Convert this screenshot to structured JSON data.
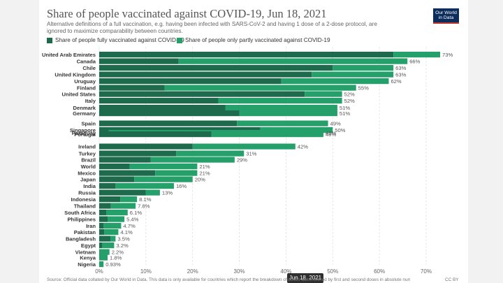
{
  "header": {
    "title": "Share of people vaccinated against COVID-19, Jun 18, 2021",
    "subtitle": "Alternative definitions of a full vaccination, e.g. having been infected with SARS-CoV-2 and having 1 dose of a 2-dose protocol, are ignored to maximize comparability between countries.",
    "logo_line1": "Our World",
    "logo_line2": "in Data"
  },
  "colors": {
    "fully": "#1e6a4c",
    "partly": "#25a06a",
    "grid": "#dddddd",
    "label": "#333333",
    "value": "#555555",
    "logo": "#0b2d5c",
    "logo_accent": "#c0372d"
  },
  "chart_data": {
    "type": "bar",
    "orientation": "horizontal",
    "stacked": true,
    "title": "Share of people vaccinated against COVID-19, Jun 18, 2021",
    "xlim": [
      0,
      73
    ],
    "x_ticks": [
      0,
      10,
      20,
      30,
      40,
      50,
      60,
      70
    ],
    "x_tick_labels": [
      "0%",
      "10%",
      "20%",
      "30%",
      "40%",
      "50%",
      "60%",
      "70%"
    ],
    "legend_position": "top-left",
    "grid": true,
    "series": [
      {
        "name": "Share of people fully vaccinated against COVID-19"
      },
      {
        "name": "Share of people only partly vaccinated against COVID-19"
      }
    ],
    "rows": [
      {
        "country": "United Arab Emirates",
        "fully": 63,
        "partly": 10,
        "total_label": "73%"
      },
      {
        "country": "Canada",
        "fully": 17,
        "partly": 49,
        "total_label": "66%"
      },
      {
        "country": "Chile",
        "fully": 50,
        "partly": 13,
        "total_label": "63%"
      },
      {
        "country": "United Kingdom",
        "fully": 45.5,
        "partly": 17.5,
        "total_label": "63%"
      },
      {
        "country": "Uruguay",
        "fully": 39,
        "partly": 23,
        "total_label": "62%"
      },
      {
        "country": "Finland",
        "fully": 14,
        "partly": 41,
        "total_label": "55%"
      },
      {
        "country": "United States",
        "fully": 44,
        "partly": 8,
        "total_label": "52%"
      },
      {
        "country": "Italy",
        "fully": 25.5,
        "partly": 26.5,
        "total_label": "52%"
      },
      {
        "country": "Denmark",
        "fully": 27,
        "partly": 24,
        "total_label": "51%"
      },
      {
        "country": "Germany",
        "fully": 30,
        "partly": 21,
        "total_label": "51%"
      },
      {
        "country": "Spain",
        "fully": 29.5,
        "partly": 19.5,
        "total_label": "49%"
      },
      {
        "country": "Singapore",
        "fully": 34.5,
        "partly": 15.5,
        "total_label": "50%"
      },
      {
        "country": "Paraguay",
        "fully": 2,
        "partly": 46,
        "total_label": "48%"
      },
      {
        "country": "Portugal",
        "fully": 24,
        "partly": 24,
        "total_label": "48%"
      },
      {
        "country": "Ireland",
        "fully": 20,
        "partly": 22,
        "total_label": "42%"
      },
      {
        "country": "Turkey",
        "fully": 16.5,
        "partly": 14.5,
        "total_label": "31%"
      },
      {
        "country": "Brazil",
        "fully": 11,
        "partly": 18,
        "total_label": "29%"
      },
      {
        "country": "World",
        "fully": 6.5,
        "partly": 14.5,
        "total_label": "21%"
      },
      {
        "country": "Mexico",
        "fully": 12,
        "partly": 9,
        "total_label": "21%"
      },
      {
        "country": "Japan",
        "fully": 7.5,
        "partly": 12.5,
        "total_label": "20%"
      },
      {
        "country": "India",
        "fully": 3.5,
        "partly": 12.5,
        "total_label": "16%"
      },
      {
        "country": "Russia",
        "fully": 10,
        "partly": 3,
        "total_label": "13%"
      },
      {
        "country": "Indonesia",
        "fully": 4.5,
        "partly": 3.6,
        "total_label": "8.1%"
      },
      {
        "country": "Thailand",
        "fully": 2.5,
        "partly": 5.3,
        "total_label": "7.8%"
      },
      {
        "country": "South Africa",
        "fully": 1.5,
        "partly": 4.6,
        "total_label": "6.1%"
      },
      {
        "country": "Philippines",
        "fully": 1.8,
        "partly": 3.6,
        "total_label": "5.4%"
      },
      {
        "country": "Iran",
        "fully": 0.9,
        "partly": 3.8,
        "total_label": "4.7%"
      },
      {
        "country": "Pakistan",
        "fully": 1.1,
        "partly": 3,
        "total_label": "4.1%"
      },
      {
        "country": "Bangladesh",
        "fully": 2.4,
        "partly": 1.1,
        "total_label": "3.5%"
      },
      {
        "country": "Egypt",
        "fully": 0.6,
        "partly": 2.6,
        "total_label": "3.2%"
      },
      {
        "country": "Vietnam",
        "fully": 0.1,
        "partly": 2.1,
        "total_label": "2.2%"
      },
      {
        "country": "Kenya",
        "fully": 0.05,
        "partly": 1.75,
        "total_label": "1.8%"
      },
      {
        "country": "Nigeria",
        "fully": 0.05,
        "partly": 0.88,
        "total_label": "0.93%"
      }
    ]
  },
  "tooltip": {
    "date": "Jun 18, 2021"
  },
  "footer": {
    "source": "Source: Official data collated by Our World in Data. This data is only available for countries which report the breakdown of doses administered by first and second doses in absolute numbers.",
    "license": "CC BY"
  }
}
